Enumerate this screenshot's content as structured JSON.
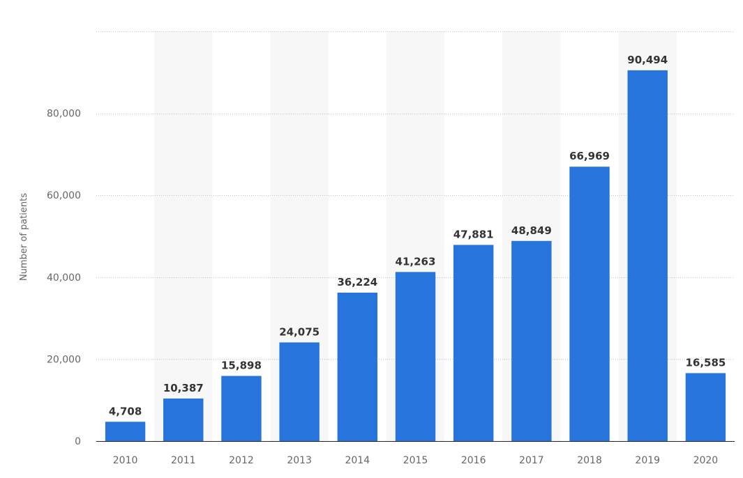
{
  "chart_data": {
    "type": "bar",
    "title": "",
    "xlabel": "",
    "ylabel": "Number of patients",
    "categories": [
      "2010",
      "2011",
      "2012",
      "2013",
      "2014",
      "2015",
      "2016",
      "2017",
      "2018",
      "2019",
      "2020"
    ],
    "values": [
      4708,
      10387,
      15898,
      24075,
      36224,
      41263,
      47881,
      48849,
      66969,
      90494,
      16585
    ],
    "value_labels": [
      "4,708",
      "10,387",
      "15,898",
      "24,075",
      "36,224",
      "41,263",
      "47,881",
      "48,849",
      "66,969",
      "90,494",
      "16,585"
    ],
    "ylim": [
      0,
      100000
    ],
    "yticks": [
      0,
      20000,
      40000,
      60000,
      80000
    ],
    "ytick_labels": [
      "0",
      "20,000",
      "40,000",
      "60,000",
      "80,000"
    ],
    "grid": true,
    "legend": "none",
    "colors": {
      "bar": "#2775dc",
      "band": "#f7f7f7",
      "grid": "#c6c6c6",
      "axis": "#222222"
    }
  }
}
